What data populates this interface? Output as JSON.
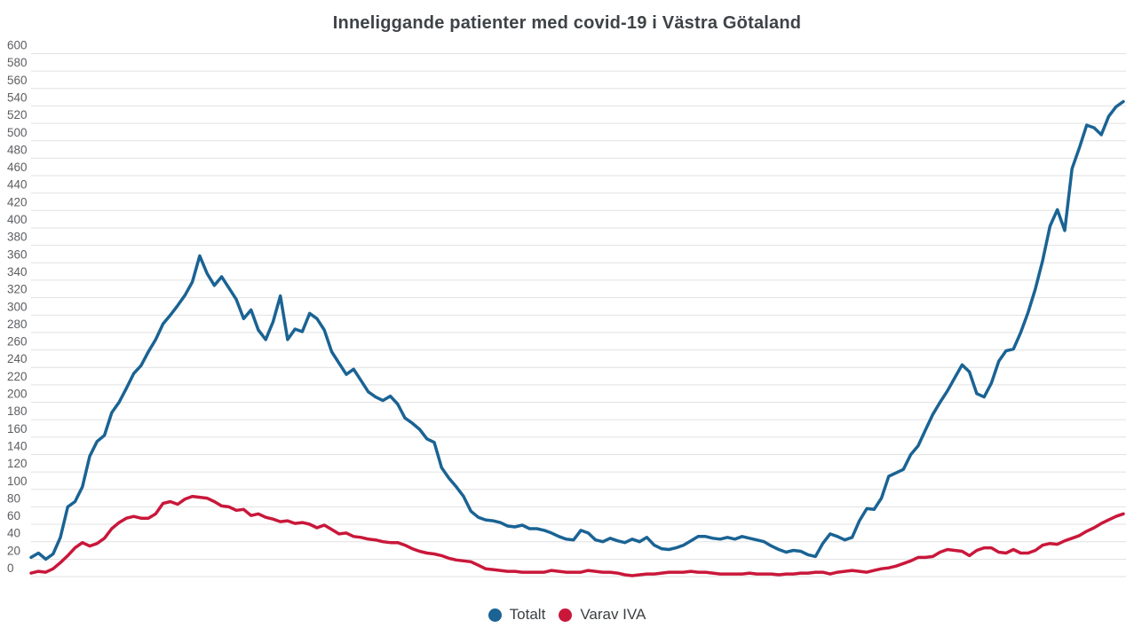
{
  "title": "Inneliggande patienter med covid-19 i Västra Götaland",
  "chart_data": {
    "type": "line",
    "title": "Inneliggande patienter med covid-19 i Västra Götaland",
    "xlabel": "",
    "ylabel": "",
    "ylim": [
      0,
      600
    ],
    "ytick_step": 20,
    "grid": true,
    "x_axis_labels": "none",
    "legend_position": "bottom-center",
    "grid_color": "#e1e1e1",
    "axis_label_color": "#5c5e62",
    "series": [
      {
        "name": "Totalt",
        "color": "#1a6394",
        "values": [
          22,
          27,
          20,
          26,
          45,
          80,
          86,
          103,
          138,
          155,
          162,
          188,
          200,
          216,
          233,
          242,
          258,
          272,
          290,
          300,
          311,
          323,
          338,
          368,
          348,
          334,
          344,
          331,
          318,
          296,
          306,
          283,
          272,
          292,
          322,
          272,
          284,
          281,
          302,
          296,
          283,
          258,
          245,
          232,
          238,
          225,
          212,
          206,
          202,
          207,
          198,
          182,
          176,
          169,
          158,
          154,
          125,
          113,
          103,
          92,
          75,
          68,
          65,
          64,
          62,
          58,
          57,
          59,
          55,
          55,
          53,
          50,
          46,
          43,
          42,
          53,
          50,
          42,
          40,
          44,
          41,
          39,
          43,
          40,
          45,
          36,
          32,
          31,
          33,
          36,
          41,
          46,
          46,
          44,
          43,
          45,
          43,
          46,
          44,
          42,
          40,
          35,
          31,
          28,
          30,
          29,
          25,
          23,
          38,
          49,
          46,
          42,
          45,
          64,
          78,
          77,
          90,
          115,
          119,
          123,
          140,
          150,
          168,
          186,
          200,
          213,
          228,
          243,
          235,
          210,
          206,
          222,
          247,
          259,
          261,
          280,
          303,
          330,
          363,
          402,
          421,
          397,
          468,
          492,
          518,
          515,
          507,
          528,
          539,
          545
        ]
      },
      {
        "name": "Varav IVA",
        "color": "#c9173a",
        "values": [
          4,
          6,
          5,
          9,
          16,
          24,
          33,
          39,
          35,
          38,
          44,
          55,
          62,
          67,
          69,
          67,
          67,
          72,
          84,
          86,
          83,
          89,
          92,
          91,
          90,
          86,
          81,
          80,
          76,
          77,
          70,
          72,
          68,
          66,
          63,
          64,
          61,
          62,
          60,
          56,
          59,
          54,
          49,
          50,
          46,
          45,
          43,
          42,
          40,
          39,
          39,
          36,
          32,
          29,
          27,
          26,
          24,
          21,
          19,
          18,
          17,
          13,
          9,
          8,
          7,
          6,
          6,
          5,
          5,
          5,
          5,
          7,
          6,
          5,
          5,
          5,
          7,
          6,
          5,
          5,
          4,
          2,
          1,
          2,
          3,
          3,
          4,
          5,
          5,
          5,
          6,
          5,
          5,
          4,
          3,
          3,
          3,
          3,
          4,
          3,
          3,
          3,
          2,
          3,
          3,
          4,
          4,
          5,
          5,
          3,
          5,
          6,
          7,
          6,
          5,
          7,
          9,
          10,
          12,
          15,
          18,
          22,
          22,
          23,
          28,
          31,
          30,
          29,
          24,
          30,
          33,
          33,
          28,
          27,
          31,
          27,
          27,
          30,
          36,
          38,
          37,
          41,
          44,
          47,
          52,
          56,
          61,
          65,
          69,
          72
        ]
      }
    ]
  }
}
